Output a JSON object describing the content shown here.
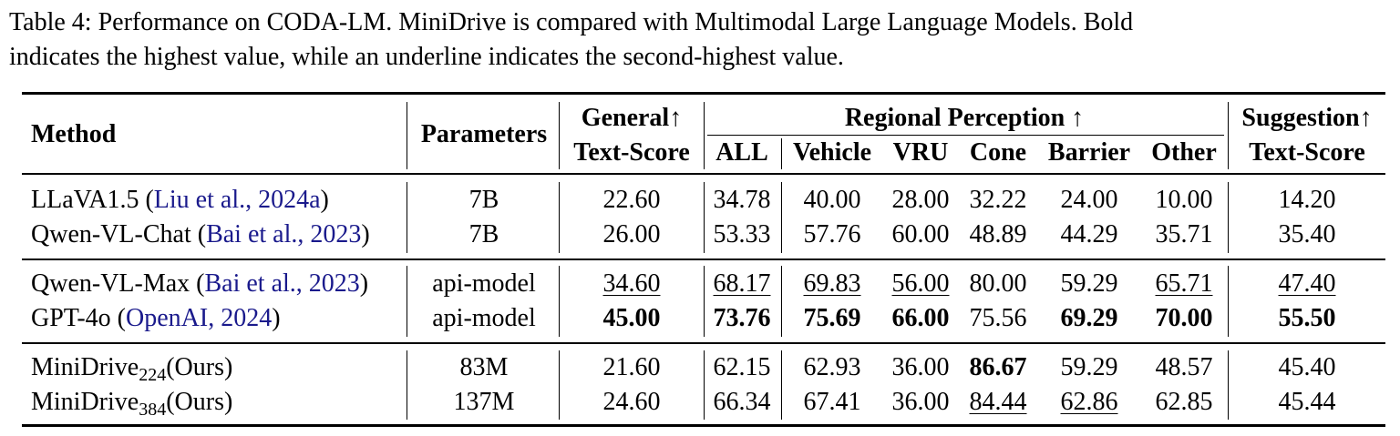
{
  "caption": {
    "line1": "Table 4: Performance on CODA-LM. MiniDrive is compared with Multimodal Large Language Models. Bold",
    "line2": "indicates the highest value, while an underline indicates the second-highest value."
  },
  "headers": {
    "method": "Method",
    "parameters": "Parameters",
    "general_top": "General↑",
    "general_bottom": "Text-Score",
    "regional_top": "Regional Perception ↑",
    "regional_cols": [
      "ALL",
      "Vehicle",
      "VRU",
      "Cone",
      "Barrier",
      "Other"
    ],
    "suggestion_top": "Suggestion↑",
    "suggestion_bottom": "Text-Score"
  },
  "rows": [
    {
      "name": "LLaVA1.5",
      "name_sub": "",
      "name_suffix": "",
      "cite_author": "Liu et al.",
      "cite_year": "2024a",
      "params": "7B",
      "general": "22.60",
      "all": "34.78",
      "vehicle": "40.00",
      "vru": "28.00",
      "cone": "32.22",
      "barrier": "24.00",
      "other": "10.00",
      "suggestion": "14.20"
    },
    {
      "name": "Qwen-VL-Chat",
      "name_sub": "",
      "name_suffix": "",
      "cite_author": "Bai et al.",
      "cite_year": "2023",
      "params": "7B",
      "general": "26.00",
      "all": "53.33",
      "vehicle": "57.76",
      "vru": "60.00",
      "cone": "48.89",
      "barrier": "44.29",
      "other": "35.71",
      "suggestion": "35.40"
    },
    {
      "name": "Qwen-VL-Max",
      "name_sub": "",
      "name_suffix": "",
      "cite_author": "Bai et al.",
      "cite_year": "2023",
      "params": "api-model",
      "general": "34.60",
      "all": "68.17",
      "vehicle": "69.83",
      "vru": "56.00",
      "cone": "80.00",
      "barrier": "59.29",
      "other": "65.71",
      "suggestion": "47.40"
    },
    {
      "name": "GPT-4o",
      "name_sub": "",
      "name_suffix": "",
      "cite_author": "OpenAI",
      "cite_year": "2024",
      "params": "api-model",
      "general": "45.00",
      "all": "73.76",
      "vehicle": "75.69",
      "vru": "66.00",
      "cone": "75.56",
      "barrier": "69.29",
      "other": "70.00",
      "suggestion": "55.50"
    },
    {
      "name": "MiniDrive",
      "name_sub": "224",
      "name_suffix": "(Ours)",
      "cite_author": "",
      "cite_year": "",
      "params": "83M",
      "general": "21.60",
      "all": "62.15",
      "vehicle": "62.93",
      "vru": "36.00",
      "cone": "86.67",
      "barrier": "59.29",
      "other": "48.57",
      "suggestion": "45.40"
    },
    {
      "name": "MiniDrive",
      "name_sub": "384",
      "name_suffix": "(Ours)",
      "cite_author": "",
      "cite_year": "",
      "params": "137M",
      "general": "24.60",
      "all": "66.34",
      "vehicle": "67.41",
      "vru": "36.00",
      "cone": "84.44",
      "barrier": "62.86",
      "other": "62.85",
      "suggestion": "45.44"
    }
  ]
}
